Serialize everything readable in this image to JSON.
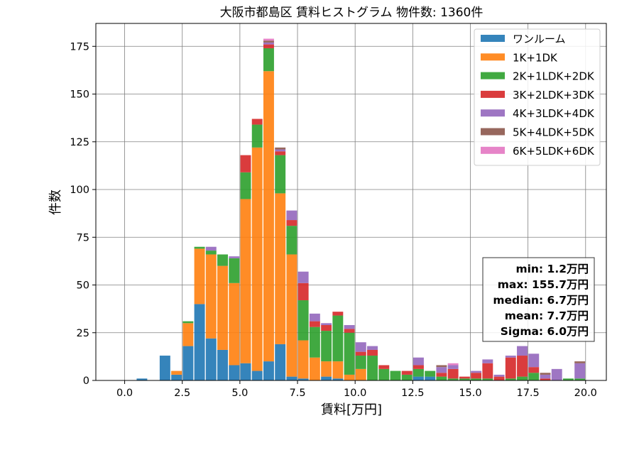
{
  "chart_data": {
    "type": "bar",
    "stacked": true,
    "title": "大阪市都島区 賃料ヒストグラム  物件数: 1360件",
    "xlabel": "賃料[万円]",
    "ylabel": "件数",
    "xlim": [
      -1.25,
      20.9
    ],
    "ylim": [
      0,
      187
    ],
    "bin_width": 0.5,
    "xticks": [
      "0.0",
      "2.5",
      "5.0",
      "7.5",
      "10.0",
      "12.5",
      "15.0",
      "17.5",
      "20.0"
    ],
    "yticks": [
      "0",
      "25",
      "50",
      "75",
      "100",
      "125",
      "150",
      "175"
    ],
    "grid": true,
    "legend_position": "top-right",
    "bins": [
      0.75,
      1.25,
      1.75,
      2.25,
      2.75,
      3.25,
      3.75,
      4.25,
      4.75,
      5.25,
      5.75,
      6.25,
      6.75,
      7.25,
      7.75,
      8.25,
      8.75,
      9.25,
      9.75,
      10.25,
      10.75,
      11.25,
      11.75,
      12.25,
      12.75,
      13.25,
      13.75,
      14.25,
      14.75,
      15.25,
      15.75,
      16.25,
      16.75,
      17.25,
      17.75,
      18.25,
      18.75,
      19.25,
      19.75
    ],
    "series": [
      {
        "name": "ワンルーム",
        "color": "#1f77b4",
        "values": [
          1,
          0,
          13,
          3,
          18,
          40,
          22,
          16,
          8,
          9,
          5,
          10,
          19,
          2,
          1,
          0,
          2,
          1,
          0,
          0,
          0,
          0,
          0,
          0,
          2,
          2,
          0,
          0,
          0,
          0,
          0,
          0,
          0,
          0,
          0,
          0,
          0,
          0,
          0
        ]
      },
      {
        "name": "1K+1DK",
        "color": "#ff7f0e",
        "values": [
          0,
          0,
          0,
          2,
          12,
          29,
          44,
          44,
          43,
          86,
          117,
          152,
          79,
          64,
          20,
          12,
          8,
          9,
          3,
          6,
          0,
          0,
          0,
          0,
          0,
          0,
          0,
          0,
          0,
          0,
          0,
          0,
          0,
          0,
          0,
          0,
          0,
          0,
          0
        ]
      },
      {
        "name": "2K+1LDK+2DK",
        "color": "#2ca02c",
        "values": [
          0,
          0,
          0,
          0,
          1,
          1,
          2,
          6,
          13,
          14,
          12,
          12,
          20,
          15,
          21,
          16,
          16,
          24,
          22,
          7,
          13,
          6,
          5,
          3,
          4,
          3,
          2,
          1,
          1,
          1,
          1,
          0,
          1,
          2,
          4,
          0,
          0,
          1,
          1
        ]
      },
      {
        "name": "3K+2LDK+3DK",
        "color": "#d62728",
        "values": [
          0,
          0,
          0,
          0,
          0,
          0,
          0,
          0,
          0,
          9,
          3,
          2,
          2,
          3,
          9,
          3,
          3,
          2,
          2,
          2,
          3,
          2,
          0,
          2,
          2,
          0,
          2,
          5,
          1,
          3,
          8,
          2,
          11,
          11,
          3,
          1,
          0,
          0,
          0
        ]
      },
      {
        "name": "4K+3LDK+4DK",
        "color": "#9467bd",
        "values": [
          0,
          0,
          0,
          0,
          0,
          0,
          2,
          0,
          1,
          0,
          0,
          1,
          1,
          5,
          6,
          4,
          1,
          0,
          2,
          5,
          2,
          0,
          0,
          0,
          4,
          0,
          3,
          2,
          0,
          1,
          2,
          1,
          1,
          5,
          7,
          2,
          6,
          0,
          8
        ]
      },
      {
        "name": "5K+4LDK+5DK",
        "color": "#8c564b",
        "values": [
          0,
          0,
          0,
          0,
          0,
          0,
          0,
          0,
          0,
          0,
          0,
          1,
          1,
          0,
          0,
          0,
          0,
          0,
          0,
          0,
          0,
          0,
          0,
          0,
          0,
          0,
          1,
          0,
          0,
          0,
          0,
          0,
          0,
          0,
          0,
          1,
          0,
          0,
          1
        ]
      },
      {
        "name": "6K+5LDK+6DK",
        "color": "#e377c2",
        "values": [
          0,
          0,
          0,
          0,
          0,
          0,
          0,
          0,
          0,
          0,
          0,
          1,
          0,
          0,
          0,
          0,
          0,
          0,
          0,
          0,
          0,
          0,
          0,
          0,
          0,
          0,
          0,
          1,
          0,
          0,
          0,
          0,
          0,
          0,
          0,
          0,
          0,
          0,
          0
        ]
      }
    ],
    "stats": {
      "min": "min: 1.2万円",
      "max": "max: 155.7万円",
      "median": "median: 6.7万円",
      "mean": "mean: 7.7万円",
      "sigma": "Sigma: 6.0万円"
    }
  }
}
